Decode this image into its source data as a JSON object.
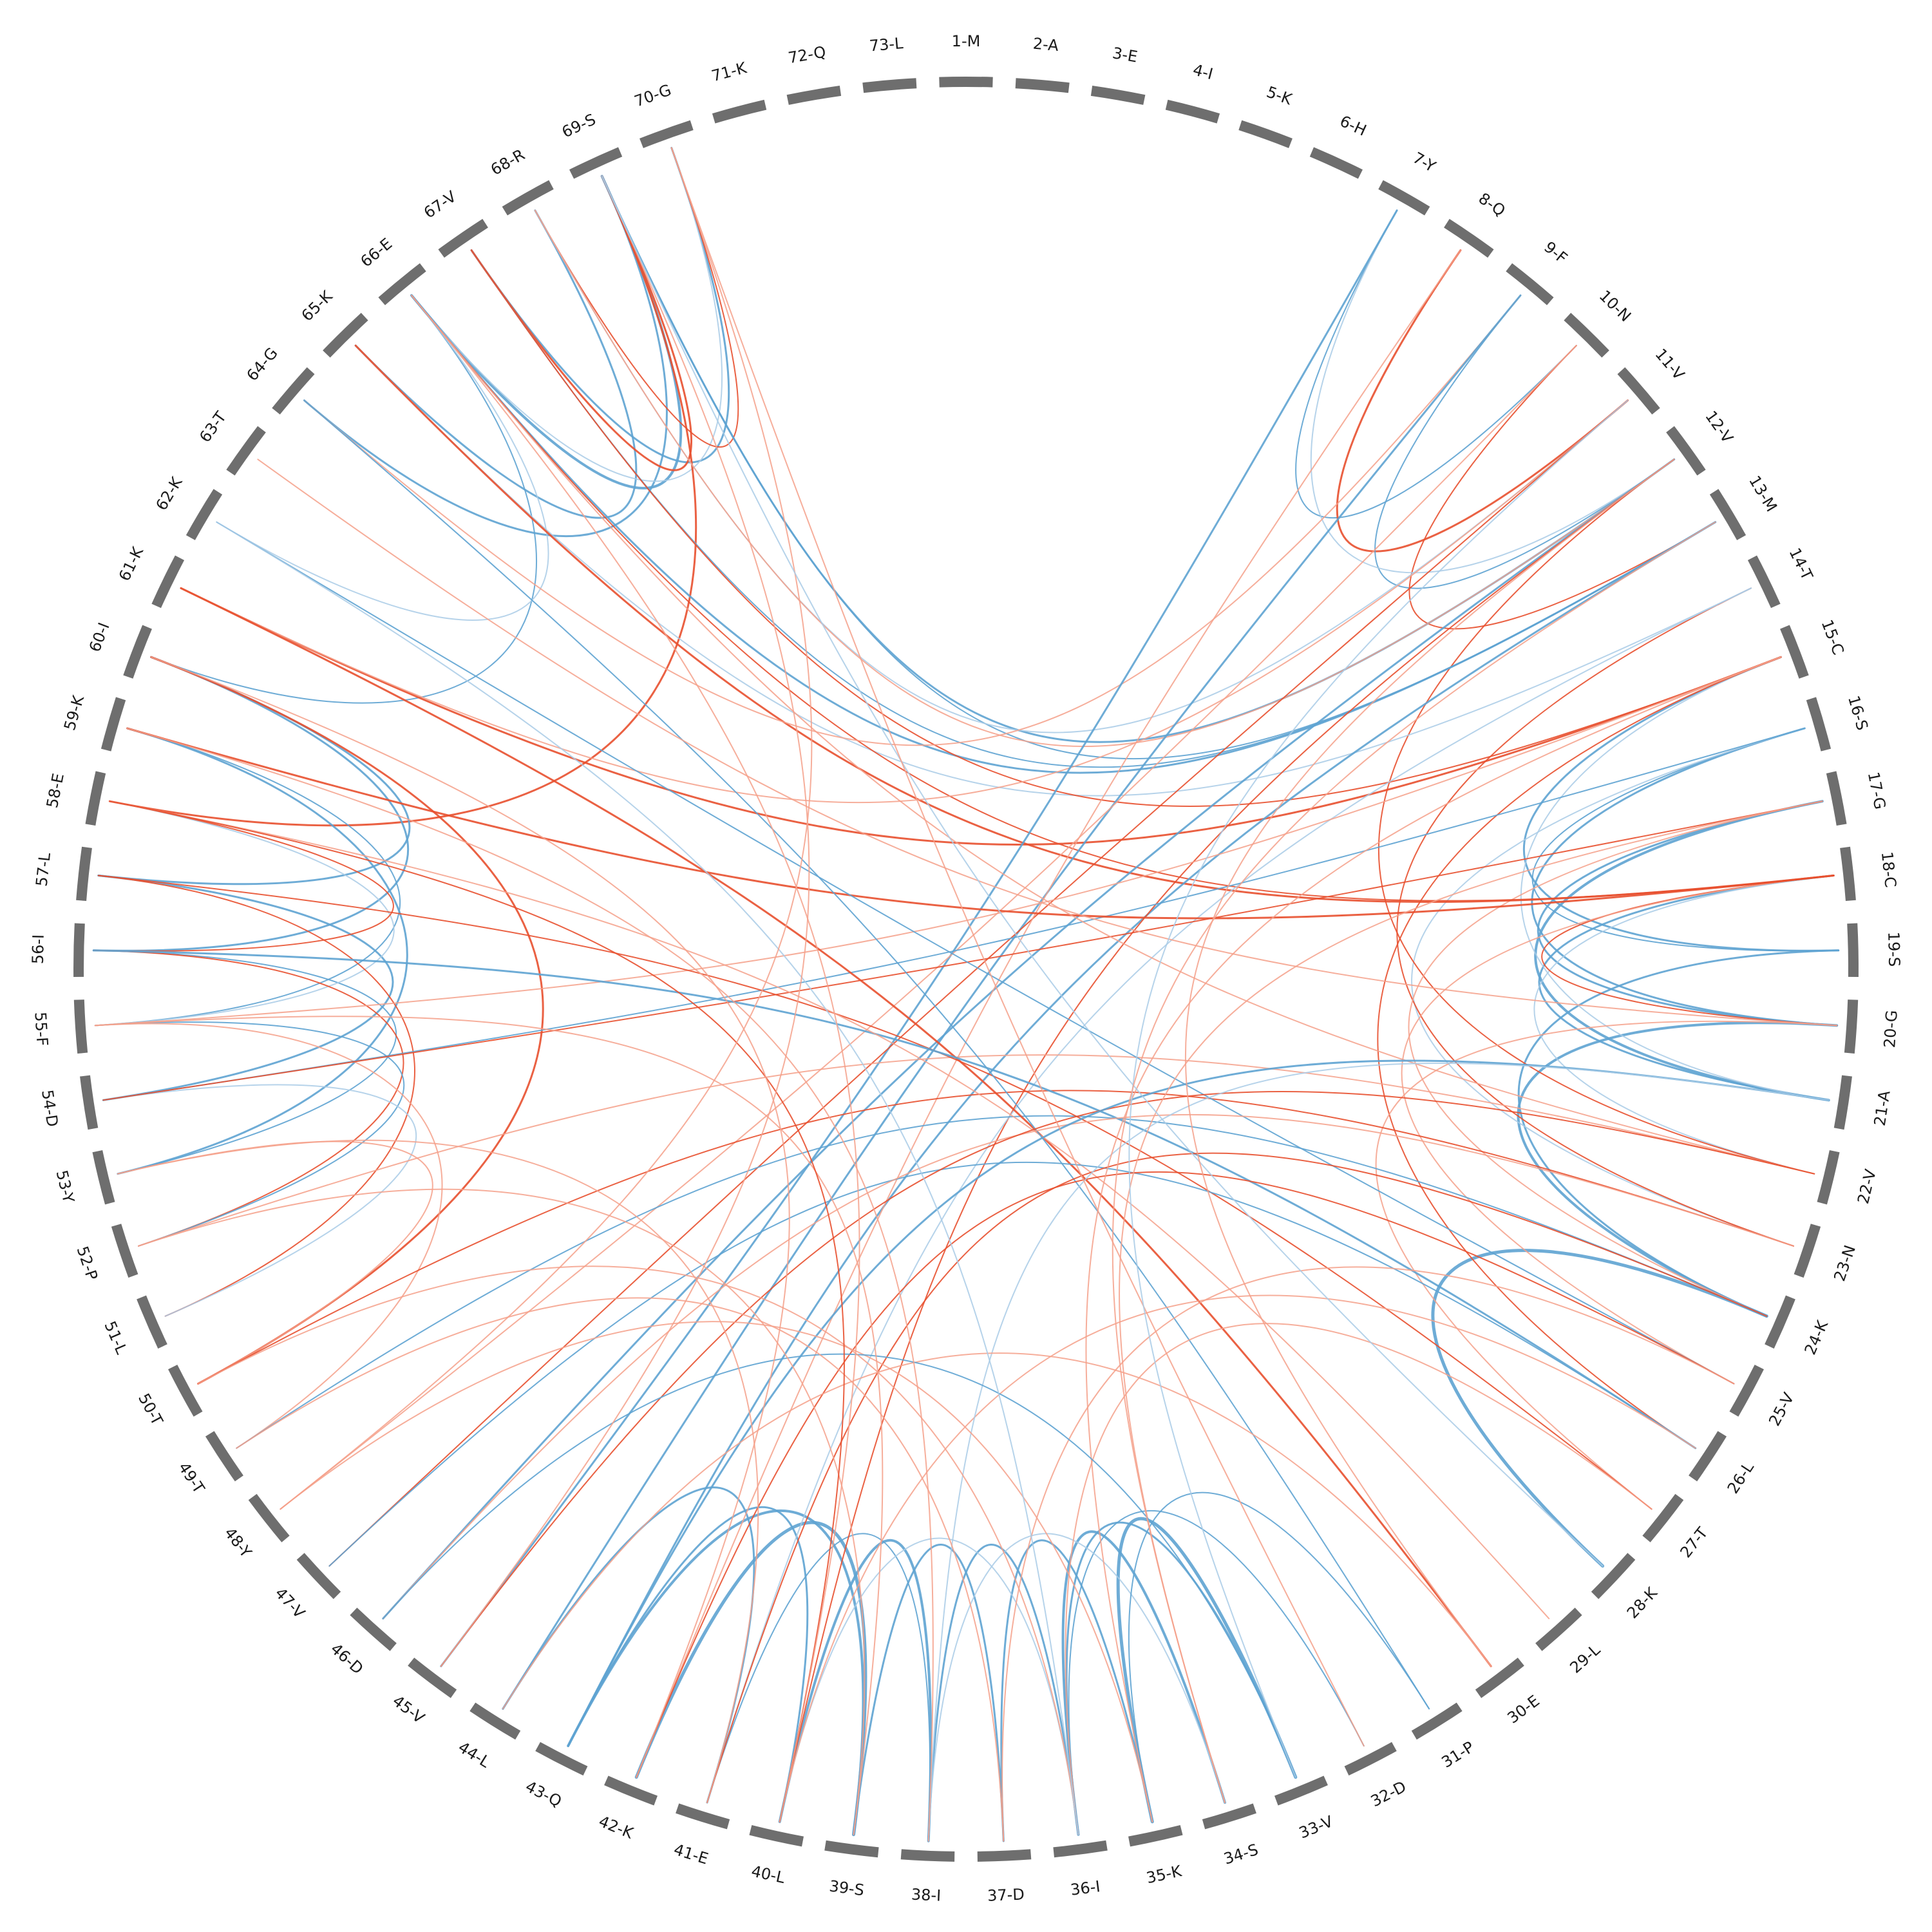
{
  "residues": [
    "1-M",
    "2-A",
    "3-E",
    "4-I",
    "5-K",
    "6-H",
    "7-Y",
    "8-Q",
    "9-F",
    "10-N",
    "11-V",
    "12-V",
    "13-M",
    "14-T",
    "15-C",
    "16-S",
    "17-G",
    "18-C",
    "19-S",
    "20-G",
    "21-A",
    "22-V",
    "23-N",
    "24-K",
    "25-V",
    "26-L",
    "27-T",
    "28-K",
    "29-L",
    "30-E",
    "31-P",
    "32-D",
    "33-V",
    "34-S",
    "35-K",
    "36-I",
    "37-D",
    "38-I",
    "39-S",
    "40-L",
    "41-E",
    "42-K",
    "43-Q",
    "44-L",
    "45-V",
    "46-D",
    "47-V",
    "48-Y",
    "49-T",
    "50-T",
    "51-L",
    "52-P",
    "53-Y",
    "54-D",
    "55-F",
    "56-I",
    "57-L",
    "58-E",
    "59-K",
    "60-I",
    "61-K",
    "62-K",
    "63-T",
    "64-G",
    "65-K",
    "66-E",
    "67-V",
    "68-R",
    "69-S",
    "70-G",
    "71-K",
    "72-Q",
    "73-L"
  ],
  "colors": {
    "segment": "#6e6e6e",
    "blue": "#5ea3d2",
    "light_blue": "#a9cbe6",
    "red": "#e8502f",
    "light_red": "#f4a08a",
    "purple": "#8c7fa3"
  },
  "links": [
    {
      "a": 39,
      "b": 42,
      "c": "blue",
      "w": 5
    },
    {
      "a": 38,
      "b": 40,
      "c": "blue",
      "w": 4
    },
    {
      "a": 39,
      "b": 43,
      "c": "blue",
      "w": 4
    },
    {
      "a": 40,
      "b": 43,
      "c": "blue",
      "w": 3
    },
    {
      "a": 41,
      "b": 44,
      "c": "blue",
      "w": 3
    },
    {
      "a": 33,
      "b": 35,
      "c": "blue",
      "w": 5
    },
    {
      "a": 34,
      "b": 36,
      "c": "blue",
      "w": 4
    },
    {
      "a": 33,
      "b": 36,
      "c": "blue",
      "w": 3
    },
    {
      "a": 35,
      "b": 37,
      "c": "blue",
      "w": 3
    },
    {
      "a": 36,
      "b": 38,
      "c": "blue",
      "w": 3
    },
    {
      "a": 37,
      "b": 39,
      "c": "blue",
      "w": 3
    },
    {
      "a": 38,
      "b": 41,
      "c": "blue",
      "w": 2
    },
    {
      "a": 32,
      "b": 36,
      "c": "blue",
      "w": 2
    },
    {
      "a": 34,
      "b": 38,
      "c": "light_blue",
      "w": 2
    },
    {
      "a": 36,
      "b": 40,
      "c": "light_blue",
      "w": 2
    },
    {
      "a": 31,
      "b": 35,
      "c": "blue",
      "w": 2
    },
    {
      "a": 28,
      "b": 24,
      "c": "blue",
      "w": 5
    },
    {
      "a": 24,
      "b": 20,
      "c": "blue",
      "w": 4
    },
    {
      "a": 21,
      "b": 17,
      "c": "blue",
      "w": 4
    },
    {
      "a": 20,
      "b": 16,
      "c": "blue",
      "w": 3
    },
    {
      "a": 19,
      "b": 15,
      "c": "blue",
      "w": 3
    },
    {
      "a": 21,
      "b": 18,
      "c": "blue",
      "w": 3
    },
    {
      "a": 20,
      "b": 17,
      "c": "blue",
      "w": 3
    },
    {
      "a": 19,
      "b": 16,
      "c": "blue",
      "w": 2
    },
    {
      "a": 24,
      "b": 19,
      "c": "blue",
      "w": 3
    },
    {
      "a": 22,
      "b": 18,
      "c": "light_blue",
      "w": 2
    },
    {
      "a": 23,
      "b": 16,
      "c": "light_blue",
      "w": 2
    },
    {
      "a": 21,
      "b": 15,
      "c": "light_blue",
      "w": 2
    },
    {
      "a": 20,
      "b": 18,
      "c": "red",
      "w": 2
    },
    {
      "a": 23,
      "b": 14,
      "c": "red",
      "w": 2
    },
    {
      "a": 22,
      "b": 12,
      "c": "red",
      "w": 2
    },
    {
      "a": 26,
      "b": 15,
      "c": "red",
      "w": 2
    },
    {
      "a": 25,
      "b": 18,
      "c": "light_red",
      "w": 2
    },
    {
      "a": 24,
      "b": 17,
      "c": "light_red",
      "w": 2
    },
    {
      "a": 27,
      "b": 20,
      "c": "light_red",
      "w": 2
    },
    {
      "a": 66,
      "b": 69,
      "c": "blue",
      "w": 4
    },
    {
      "a": 64,
      "b": 69,
      "c": "blue",
      "w": 3
    },
    {
      "a": 67,
      "b": 70,
      "c": "blue",
      "w": 3
    },
    {
      "a": 65,
      "b": 68,
      "c": "blue",
      "w": 3
    },
    {
      "a": 66,
      "b": 70,
      "c": "light_blue",
      "w": 2
    },
    {
      "a": 67,
      "b": 69,
      "c": "red",
      "w": 3
    },
    {
      "a": 68,
      "b": 70,
      "c": "red",
      "w": 2
    },
    {
      "a": 58,
      "b": 69,
      "c": "red",
      "w": 3
    },
    {
      "a": 60,
      "b": 66,
      "c": "blue",
      "w": 2
    },
    {
      "a": 62,
      "b": 66,
      "c": "light_blue",
      "w": 2
    },
    {
      "a": 7,
      "b": 10,
      "c": "blue",
      "w": 2
    },
    {
      "a": 8,
      "b": 11,
      "c": "red",
      "w": 3
    },
    {
      "a": 9,
      "b": 12,
      "c": "blue",
      "w": 2
    },
    {
      "a": 10,
      "b": 13,
      "c": "red",
      "w": 2
    },
    {
      "a": 7,
      "b": 12,
      "c": "light_blue",
      "w": 2
    },
    {
      "a": 69,
      "b": 12,
      "c": "blue",
      "w": 3
    },
    {
      "a": 69,
      "b": 13,
      "c": "blue",
      "w": 2
    },
    {
      "a": 67,
      "b": 13,
      "c": "blue",
      "w": 2
    },
    {
      "a": 66,
      "b": 13,
      "c": "blue",
      "w": 3
    },
    {
      "a": 65,
      "b": 14,
      "c": "light_blue",
      "w": 2
    },
    {
      "a": 68,
      "b": 11,
      "c": "light_blue",
      "w": 2
    },
    {
      "a": 67,
      "b": 15,
      "c": "red",
      "w": 2
    },
    {
      "a": 68,
      "b": 12,
      "c": "light_red",
      "w": 2
    },
    {
      "a": 61,
      "b": 15,
      "c": "red",
      "w": 3
    },
    {
      "a": 65,
      "b": 18,
      "c": "red",
      "w": 3
    },
    {
      "a": 66,
      "b": 18,
      "c": "red",
      "w": 2
    },
    {
      "a": 61,
      "b": 11,
      "c": "light_red",
      "w": 2
    },
    {
      "a": 64,
      "b": 9,
      "c": "light_red",
      "w": 2
    },
    {
      "a": 57,
      "b": 60,
      "c": "blue",
      "w": 3
    },
    {
      "a": 56,
      "b": 60,
      "c": "blue",
      "w": 3
    },
    {
      "a": 55,
      "b": 59,
      "c": "blue",
      "w": 2
    },
    {
      "a": 53,
      "b": 59,
      "c": "blue",
      "w": 3
    },
    {
      "a": 54,
      "b": 57,
      "c": "blue",
      "w": 3
    },
    {
      "a": 53,
      "b": 56,
      "c": "blue",
      "w": 2
    },
    {
      "a": 55,
      "b": 58,
      "c": "light_blue",
      "w": 2
    },
    {
      "a": 56,
      "b": 58,
      "c": "red",
      "w": 2
    },
    {
      "a": 51,
      "b": 57,
      "c": "red",
      "w": 2
    },
    {
      "a": 52,
      "b": 56,
      "c": "red",
      "w": 2
    },
    {
      "a": 50,
      "b": 60,
      "c": "red",
      "w": 3
    },
    {
      "a": 52,
      "b": 55,
      "c": "blue",
      "w": 2
    },
    {
      "a": 51,
      "b": 54,
      "c": "light_blue",
      "w": 2
    },
    {
      "a": 50,
      "b": 53,
      "c": "light_red",
      "w": 2
    },
    {
      "a": 49,
      "b": 55,
      "c": "light_red",
      "w": 2
    },
    {
      "a": 7,
      "b": 45,
      "c": "blue",
      "w": 3
    },
    {
      "a": 9,
      "b": 44,
      "c": "blue",
      "w": 3
    },
    {
      "a": 12,
      "b": 46,
      "c": "blue",
      "w": 3
    },
    {
      "a": 13,
      "b": 43,
      "c": "blue",
      "w": 3
    },
    {
      "a": 11,
      "b": 47,
      "c": "red",
      "w": 2
    },
    {
      "a": 8,
      "b": 42,
      "c": "light_red",
      "w": 2
    },
    {
      "a": 12,
      "b": 40,
      "c": "red",
      "w": 2
    },
    {
      "a": 14,
      "b": 41,
      "c": "light_blue",
      "w": 2
    },
    {
      "a": 10,
      "b": 48,
      "c": "light_red",
      "w": 2
    },
    {
      "a": 16,
      "b": 54,
      "c": "blue",
      "w": 2
    },
    {
      "a": 17,
      "b": 54,
      "c": "red",
      "w": 2
    },
    {
      "a": 15,
      "b": 55,
      "c": "light_red",
      "w": 2
    },
    {
      "a": 18,
      "b": 59,
      "c": "red",
      "w": 3
    },
    {
      "a": 23,
      "b": 50,
      "c": "red",
      "w": 2
    },
    {
      "a": 24,
      "b": 49,
      "c": "blue",
      "w": 2
    },
    {
      "a": 22,
      "b": 52,
      "c": "light_red",
      "w": 2
    },
    {
      "a": 61,
      "b": 30,
      "c": "red",
      "w": 3
    },
    {
      "a": 57,
      "b": 27,
      "c": "red",
      "w": 2
    },
    {
      "a": 56,
      "b": 26,
      "c": "blue",
      "w": 3
    },
    {
      "a": 58,
      "b": 29,
      "c": "light_red",
      "w": 2
    },
    {
      "a": 64,
      "b": 31,
      "c": "blue",
      "w": 2
    },
    {
      "a": 62,
      "b": 25,
      "c": "blue",
      "w": 2
    },
    {
      "a": 66,
      "b": 22,
      "c": "light_red",
      "w": 2
    },
    {
      "a": 63,
      "b": 20,
      "c": "light_red",
      "w": 2
    },
    {
      "a": 47,
      "b": 26,
      "c": "blue",
      "w": 2
    },
    {
      "a": 46,
      "b": 23,
      "c": "light_red",
      "w": 2
    },
    {
      "a": 45,
      "b": 22,
      "c": "red",
      "w": 2
    },
    {
      "a": 43,
      "b": 21,
      "c": "blue",
      "w": 3
    },
    {
      "a": 42,
      "b": 25,
      "c": "red",
      "w": 2
    },
    {
      "a": 41,
      "b": 24,
      "c": "red",
      "w": 2
    },
    {
      "a": 40,
      "b": 26,
      "c": "light_red",
      "w": 2
    },
    {
      "a": 37,
      "b": 25,
      "c": "light_red",
      "w": 2
    },
    {
      "a": 38,
      "b": 21,
      "c": "light_blue",
      "w": 2
    },
    {
      "a": 36,
      "b": 27,
      "c": "light_red",
      "w": 2
    },
    {
      "a": 35,
      "b": 15,
      "c": "light_red",
      "w": 2
    },
    {
      "a": 34,
      "b": 17,
      "c": "light_red",
      "w": 2
    },
    {
      "a": 44,
      "b": 30,
      "c": "light_red",
      "w": 2
    },
    {
      "a": 48,
      "b": 35,
      "c": "light_red",
      "w": 2
    },
    {
      "a": 46,
      "b": 33,
      "c": "blue",
      "w": 2
    },
    {
      "a": 49,
      "b": 37,
      "c": "light_red",
      "w": 2
    },
    {
      "a": 50,
      "b": 36,
      "c": "light_red",
      "w": 2
    },
    {
      "a": 52,
      "b": 39,
      "c": "light_red",
      "w": 2
    },
    {
      "a": 53,
      "b": 41,
      "c": "light_red",
      "w": 2
    },
    {
      "a": 55,
      "b": 39,
      "c": "light_red",
      "w": 2
    },
    {
      "a": 58,
      "b": 40,
      "c": "red",
      "w": 2
    },
    {
      "a": 59,
      "b": 38,
      "c": "light_red",
      "w": 2
    },
    {
      "a": 60,
      "b": 42,
      "c": "light_red",
      "w": 2
    },
    {
      "a": 62,
      "b": 36,
      "c": "light_blue",
      "w": 2
    },
    {
      "a": 66,
      "b": 40,
      "c": "light_red",
      "w": 2
    },
    {
      "a": 69,
      "b": 45,
      "c": "light_red",
      "w": 2
    },
    {
      "a": 70,
      "b": 48,
      "c": "light_red",
      "w": 2
    },
    {
      "a": 69,
      "b": 28,
      "c": "light_blue",
      "w": 2
    },
    {
      "a": 70,
      "b": 32,
      "c": "light_red",
      "w": 2
    },
    {
      "a": 12,
      "b": 30,
      "c": "light_red",
      "w": 2
    },
    {
      "a": 11,
      "b": 33,
      "c": "light_blue",
      "w": 2
    },
    {
      "a": 13,
      "b": 34,
      "c": "light_red",
      "w": 2
    }
  ]
}
